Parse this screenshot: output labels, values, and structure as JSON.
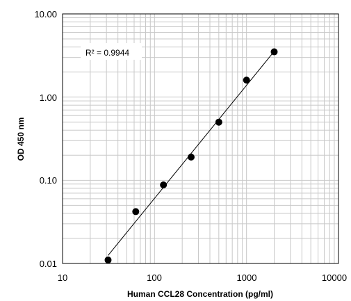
{
  "chart_data": {
    "type": "scatter",
    "xscale": "log",
    "yscale": "log",
    "xlim": [
      10,
      10000
    ],
    "ylim": [
      0.01,
      10
    ],
    "xlabel": "Human CCL28 Concentration (pg/ml)",
    "ylabel": "OD 450 nm",
    "x_tick_labels": [
      "10",
      "100",
      "1000",
      "10000"
    ],
    "y_tick_labels": [
      "0.01",
      "0.10",
      "1.00",
      "10.00"
    ],
    "grid": true,
    "annotation": "R² = 0.9944",
    "series": [
      {
        "x": [
          31.25,
          62.5,
          125,
          250,
          500,
          1000,
          2000
        ],
        "y": [
          0.011,
          0.042,
          0.088,
          0.19,
          0.5,
          1.6,
          3.5
        ]
      }
    ],
    "trendline": {
      "x": [
        31.25,
        2000
      ],
      "y": [
        0.0125,
        3.55
      ]
    }
  }
}
